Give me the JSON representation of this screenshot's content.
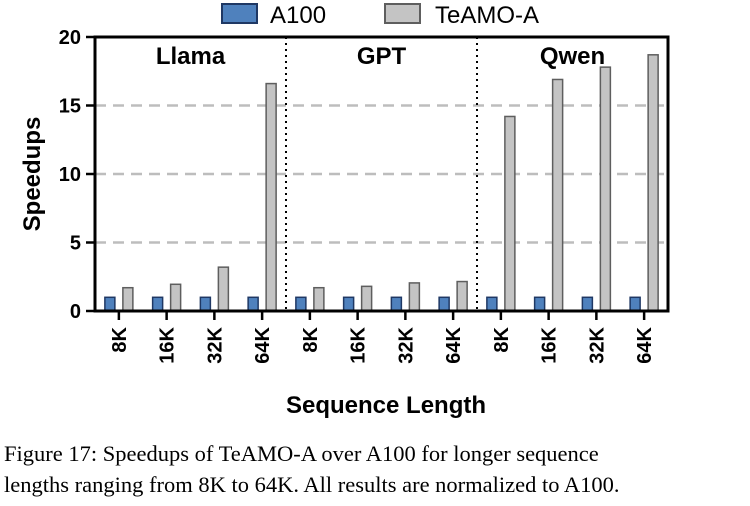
{
  "chart_data": {
    "type": "bar",
    "ylabel": "Speedups",
    "xlabel": "Sequence Length",
    "ylim": [
      0,
      20
    ],
    "yticks": [
      0,
      5,
      10,
      15,
      20
    ],
    "grid": "horizontal dashed",
    "legend_position": "top",
    "groups": [
      "Llama",
      "GPT",
      "Qwen"
    ],
    "categories": [
      "8K",
      "16K",
      "32K",
      "64K"
    ],
    "series": [
      {
        "name": "A100",
        "color": "#4f81bd",
        "values": {
          "Llama": [
            1,
            1,
            1,
            1
          ],
          "GPT": [
            1,
            1,
            1,
            1
          ],
          "Qwen": [
            1,
            1,
            1,
            1
          ]
        }
      },
      {
        "name": "TeAMO-A",
        "color": "#c4c4c4",
        "values": {
          "Llama": [
            1.7,
            1.95,
            3.2,
            16.6
          ],
          "GPT": [
            1.7,
            1.8,
            2.05,
            2.15
          ],
          "Qwen": [
            14.2,
            16.9,
            17.8,
            18.7
          ]
        }
      }
    ]
  },
  "caption": {
    "line1": "Figure 17: Speedups of TeAMO-A over A100 for longer sequence",
    "line2": "lengths ranging from 8K to 64K. All results are normalized to A100."
  }
}
